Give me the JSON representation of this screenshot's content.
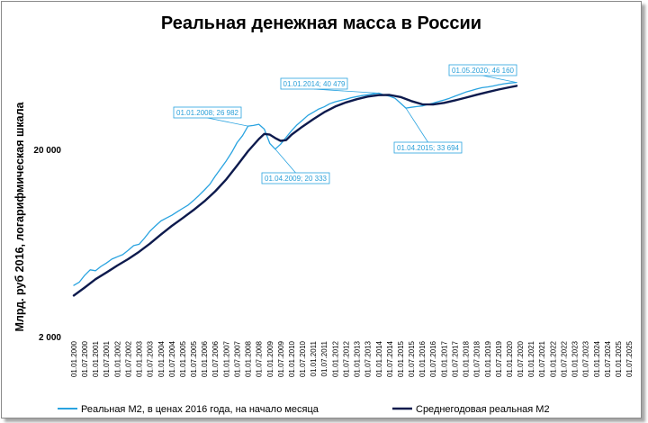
{
  "chart_data": {
    "type": "line",
    "title": "Реальная денежная масса в России",
    "xlabel": "",
    "ylabel": "Млрд. руб 2016, логарифмическая шкала",
    "y_scale": "log",
    "ylim": [
      2000,
      80000
    ],
    "y_ticks": [
      {
        "value": 2000,
        "label": "2 000"
      },
      {
        "value": 20000,
        "label": "20 000"
      }
    ],
    "x_range": [
      "2000-01-01",
      "2025-07-01"
    ],
    "x_tick_dates": [
      "2000-01-01",
      "2000-07-01",
      "2001-01-01",
      "2001-07-01",
      "2002-01-01",
      "2002-07-01",
      "2003-01-01",
      "2003-07-01",
      "2004-01-01",
      "2004-07-01",
      "2005-01-01",
      "2005-07-01",
      "2006-01-01",
      "2006-07-01",
      "2007-01-01",
      "2007-07-01",
      "2008-01-01",
      "2008-07-01",
      "2009-01-01",
      "2009-07-01",
      "2010-01-01",
      "2010-07-01",
      "2011-01-01",
      "2011-07-01",
      "2012-01-01",
      "2012-07-01",
      "2013-01-01",
      "2013-07-01",
      "2014-01-01",
      "2014-07-01",
      "2015-01-01",
      "2015-07-01",
      "2016-01-01",
      "2016-07-01",
      "2017-01-01",
      "2017-07-01",
      "2018-01-01",
      "2018-07-01",
      "2019-01-01",
      "2019-07-01",
      "2020-01-01",
      "2020-07-01",
      "2021-01-01",
      "2021-07-01",
      "2022-01-01",
      "2022-07-01",
      "2023-01-01",
      "2023-07-01",
      "2024-01-01",
      "2024-07-01",
      "2025-01-01",
      "2025-07-01"
    ],
    "x_tick_labels": [
      "01.01.2000",
      "01.07.2000",
      "01.01.2001",
      "01.07.2001",
      "01.01.2002",
      "01.07.2002",
      "01.01.2003",
      "01.07.2003",
      "01.01.2004",
      "01.07.2004",
      "01.01.2005",
      "01.07.2005",
      "01.01.2006",
      "01.07.2006",
      "01.01.2007",
      "01.07.2007",
      "01.01.2008",
      "01.07.2008",
      "01.01.2009",
      "01.07.2009",
      "01.01.2010",
      "01.07.2010",
      "01.01.2011",
      "01.07.2011",
      "01.01.2012",
      "01.07.2012",
      "01.01.2013",
      "01.07.2013",
      "01.01.2014",
      "01.07.2014",
      "01.01.2015",
      "01.07.2015",
      "01.01.2016",
      "01.07.2016",
      "01.01.2017",
      "01.07.2017",
      "01.01.2018",
      "01.07.2018",
      "01.01.2019",
      "01.07.2019",
      "01.01.2020",
      "01.07.2020",
      "01.01.2021",
      "01.07.2021",
      "01.01.2022",
      "01.07.2022",
      "01.01.2023",
      "01.07.2023",
      "01.01.2024",
      "01.07.2024",
      "01.01.2025",
      "01.07.2025"
    ],
    "grid": false,
    "legend_position": "bottom",
    "series": [
      {
        "name": "Реальная М2, в ценах 2016 года, на начало месяца",
        "color": "#29a3e0",
        "points": [
          [
            "2000-01-01",
            3800
          ],
          [
            "2000-04-01",
            3950
          ],
          [
            "2000-07-01",
            4300
          ],
          [
            "2000-10-01",
            4600
          ],
          [
            "2001-01-01",
            4550
          ],
          [
            "2001-04-01",
            4800
          ],
          [
            "2001-07-01",
            5000
          ],
          [
            "2001-10-01",
            5250
          ],
          [
            "2002-01-01",
            5400
          ],
          [
            "2002-04-01",
            5550
          ],
          [
            "2002-07-01",
            5850
          ],
          [
            "2002-10-01",
            6200
          ],
          [
            "2003-01-01",
            6300
          ],
          [
            "2003-04-01",
            6800
          ],
          [
            "2003-07-01",
            7400
          ],
          [
            "2003-10-01",
            7900
          ],
          [
            "2004-01-01",
            8400
          ],
          [
            "2004-04-01",
            8700
          ],
          [
            "2004-07-01",
            9000
          ],
          [
            "2004-10-01",
            9400
          ],
          [
            "2005-01-01",
            9800
          ],
          [
            "2005-04-01",
            10200
          ],
          [
            "2005-07-01",
            10800
          ],
          [
            "2005-10-01",
            11500
          ],
          [
            "2006-01-01",
            12300
          ],
          [
            "2006-04-01",
            13200
          ],
          [
            "2006-07-01",
            14600
          ],
          [
            "2006-10-01",
            16000
          ],
          [
            "2007-01-01",
            17600
          ],
          [
            "2007-04-01",
            19500
          ],
          [
            "2007-07-01",
            22000
          ],
          [
            "2007-10-01",
            24000
          ],
          [
            "2008-01-01",
            26982
          ],
          [
            "2008-04-01",
            27200
          ],
          [
            "2008-07-01",
            27600
          ],
          [
            "2008-10-01",
            26000
          ],
          [
            "2009-01-01",
            21800
          ],
          [
            "2009-04-01",
            20333
          ],
          [
            "2009-07-01",
            21600
          ],
          [
            "2009-10-01",
            23500
          ],
          [
            "2010-01-01",
            25500
          ],
          [
            "2010-04-01",
            27400
          ],
          [
            "2010-07-01",
            29000
          ],
          [
            "2010-10-01",
            30800
          ],
          [
            "2011-01-01",
            32000
          ],
          [
            "2011-04-01",
            33300
          ],
          [
            "2011-07-01",
            34200
          ],
          [
            "2011-10-01",
            35500
          ],
          [
            "2012-01-01",
            36400
          ],
          [
            "2012-04-01",
            37000
          ],
          [
            "2012-07-01",
            37600
          ],
          [
            "2012-10-01",
            38300
          ],
          [
            "2013-01-01",
            38800
          ],
          [
            "2013-04-01",
            39300
          ],
          [
            "2013-07-01",
            39700
          ],
          [
            "2013-10-01",
            40100
          ],
          [
            "2014-01-01",
            40479
          ],
          [
            "2014-04-01",
            39600
          ],
          [
            "2014-07-01",
            39000
          ],
          [
            "2014-10-01",
            38000
          ],
          [
            "2015-01-01",
            35800
          ],
          [
            "2015-04-01",
            33694
          ],
          [
            "2015-07-01",
            34000
          ],
          [
            "2015-10-01",
            34300
          ],
          [
            "2016-01-01",
            34600
          ],
          [
            "2016-04-01",
            35200
          ],
          [
            "2016-07-01",
            35800
          ],
          [
            "2016-10-01",
            36500
          ],
          [
            "2017-01-01",
            37200
          ],
          [
            "2017-04-01",
            38000
          ],
          [
            "2017-07-01",
            39000
          ],
          [
            "2017-10-01",
            40000
          ],
          [
            "2018-01-01",
            41000
          ],
          [
            "2018-04-01",
            41800
          ],
          [
            "2018-07-01",
            42600
          ],
          [
            "2018-10-01",
            43300
          ],
          [
            "2019-01-01",
            43700
          ],
          [
            "2019-04-01",
            44200
          ],
          [
            "2019-07-01",
            44800
          ],
          [
            "2019-10-01",
            45400
          ],
          [
            "2020-01-01",
            45800
          ],
          [
            "2020-05-01",
            46160
          ]
        ]
      },
      {
        "name": "Среднегодовая реальная М2",
        "color": "#0d1a4d",
        "points": [
          [
            "2000-01-01",
            3350
          ],
          [
            "2000-07-01",
            3700
          ],
          [
            "2001-01-01",
            4100
          ],
          [
            "2001-07-01",
            4450
          ],
          [
            "2002-01-01",
            4850
          ],
          [
            "2002-07-01",
            5250
          ],
          [
            "2003-01-01",
            5750
          ],
          [
            "2003-07-01",
            6350
          ],
          [
            "2004-01-01",
            7100
          ],
          [
            "2004-07-01",
            7900
          ],
          [
            "2005-01-01",
            8700
          ],
          [
            "2005-07-01",
            9600
          ],
          [
            "2006-01-01",
            10700
          ],
          [
            "2006-07-01",
            12100
          ],
          [
            "2007-01-01",
            14000
          ],
          [
            "2007-07-01",
            16600
          ],
          [
            "2008-01-01",
            19800
          ],
          [
            "2008-07-01",
            23000
          ],
          [
            "2008-10-01",
            24500
          ],
          [
            "2009-01-01",
            24300
          ],
          [
            "2009-04-01",
            23300
          ],
          [
            "2009-07-01",
            22500
          ],
          [
            "2009-10-01",
            22700
          ],
          [
            "2010-01-01",
            24300
          ],
          [
            "2010-07-01",
            26800
          ],
          [
            "2011-01-01",
            29400
          ],
          [
            "2011-07-01",
            32000
          ],
          [
            "2012-01-01",
            34300
          ],
          [
            "2012-07-01",
            36100
          ],
          [
            "2013-01-01",
            37600
          ],
          [
            "2013-07-01",
            38800
          ],
          [
            "2014-01-01",
            39500
          ],
          [
            "2014-07-01",
            39600
          ],
          [
            "2015-01-01",
            38600
          ],
          [
            "2015-07-01",
            36700
          ],
          [
            "2016-01-01",
            35300
          ],
          [
            "2016-07-01",
            35200
          ],
          [
            "2017-01-01",
            35900
          ],
          [
            "2017-07-01",
            37000
          ],
          [
            "2018-01-01",
            38300
          ],
          [
            "2018-07-01",
            39700
          ],
          [
            "2019-01-01",
            41000
          ],
          [
            "2019-07-01",
            42300
          ],
          [
            "2020-01-01",
            43500
          ],
          [
            "2020-05-01",
            44300
          ]
        ]
      }
    ],
    "annotations": [
      {
        "label": "01.01.2008; 26 982",
        "date": "2008-01-01",
        "value": 26982
      },
      {
        "label": "01.04.2009; 20 333",
        "date": "2009-04-01",
        "value": 20333
      },
      {
        "label": "01.01.2014; 40 479",
        "date": "2014-01-01",
        "value": 40479
      },
      {
        "label": "01.04.2015; 33 694",
        "date": "2015-04-01",
        "value": 33694
      },
      {
        "label": "01.05.2020; 46 160",
        "date": "2020-05-01",
        "value": 46160
      }
    ]
  }
}
